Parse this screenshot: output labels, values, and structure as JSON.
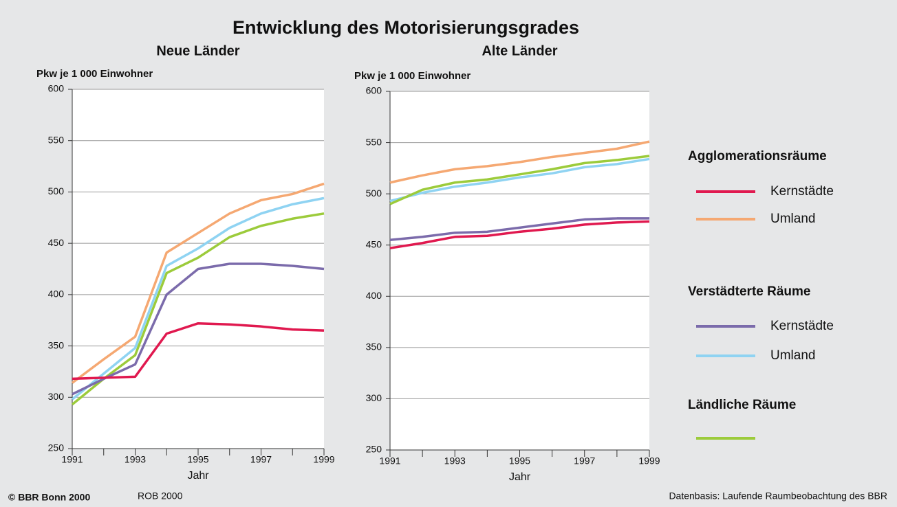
{
  "title": "Entwicklung des Motorisierungsgrades",
  "legend": [
    {
      "title": "Agglomerationsräume",
      "entries": [
        {
          "name": "Kernstädte",
          "color": "#e0194f"
        },
        {
          "name": "Umland",
          "color": "#f5a872"
        }
      ]
    },
    {
      "title": "Verstädterte Räume",
      "entries": [
        {
          "name": "Kernstädte",
          "color": "#7b6bab"
        },
        {
          "name": "Umland",
          "color": "#8fd3f2"
        }
      ]
    },
    {
      "title": "Ländliche Räume",
      "entries": [
        {
          "color": "#9ccb3b"
        }
      ]
    }
  ],
  "chart_data": [
    {
      "type": "line",
      "title": "Neue Länder",
      "y_label": "Pkw je 1 000 Einwohner",
      "x_label": "Jahr",
      "x": [
        1991,
        1992,
        1993,
        1994,
        1995,
        1996,
        1997,
        1998,
        1999
      ],
      "xlim": [
        1991,
        1999
      ],
      "xticks": [
        1991,
        1993,
        1995,
        1997,
        1999
      ],
      "ylim": [
        250,
        600
      ],
      "yticks": [
        250,
        300,
        350,
        400,
        450,
        500,
        550,
        600
      ],
      "grid": true,
      "series": [
        {
          "color": "#f5a872",
          "values": [
            314,
            337,
            359,
            441,
            460,
            479,
            492,
            498,
            508
          ]
        },
        {
          "color": "#8fd3f2",
          "values": [
            298,
            323,
            348,
            428,
            445,
            465,
            479,
            488,
            494
          ]
        },
        {
          "color": "#9ccb3b",
          "values": [
            293,
            318,
            341,
            421,
            436,
            456,
            467,
            474,
            479
          ]
        },
        {
          "color": "#7b6bab",
          "values": [
            303,
            318,
            332,
            400,
            425,
            430,
            430,
            428,
            425
          ]
        },
        {
          "color": "#e0194f",
          "values": [
            318,
            319,
            320,
            362,
            372,
            371,
            369,
            366,
            365
          ]
        }
      ]
    },
    {
      "type": "line",
      "title": "Alte Länder",
      "y_label": "Pkw je 1 000 Einwohner",
      "x_label": "Jahr",
      "x": [
        1991,
        1992,
        1993,
        1994,
        1995,
        1996,
        1997,
        1998,
        1999
      ],
      "xlim": [
        1991,
        1999
      ],
      "xticks": [
        1991,
        1993,
        1995,
        1997,
        1999
      ],
      "ylim": [
        250,
        600
      ],
      "yticks": [
        250,
        300,
        350,
        400,
        450,
        500,
        550,
        600
      ],
      "grid": true,
      "series": [
        {
          "color": "#f5a872",
          "values": [
            511,
            518,
            524,
            527,
            531,
            536,
            540,
            544,
            551
          ]
        },
        {
          "color": "#8fd3f2",
          "values": [
            493,
            501,
            507,
            511,
            516,
            520,
            526,
            529,
            534
          ]
        },
        {
          "color": "#9ccb3b",
          "values": [
            490,
            504,
            511,
            514,
            519,
            524,
            530,
            533,
            537
          ]
        },
        {
          "color": "#7b6bab",
          "values": [
            455,
            458,
            462,
            463,
            467,
            471,
            475,
            476,
            476
          ]
        },
        {
          "color": "#e0194f",
          "values": [
            447,
            452,
            458,
            459,
            463,
            466,
            470,
            472,
            473
          ]
        }
      ]
    }
  ],
  "footer": {
    "copyright": "© BBR Bonn 2000",
    "source_code": "ROB 2000",
    "source": "Datenbasis: Laufende Raumbeobachtung des BBR"
  }
}
